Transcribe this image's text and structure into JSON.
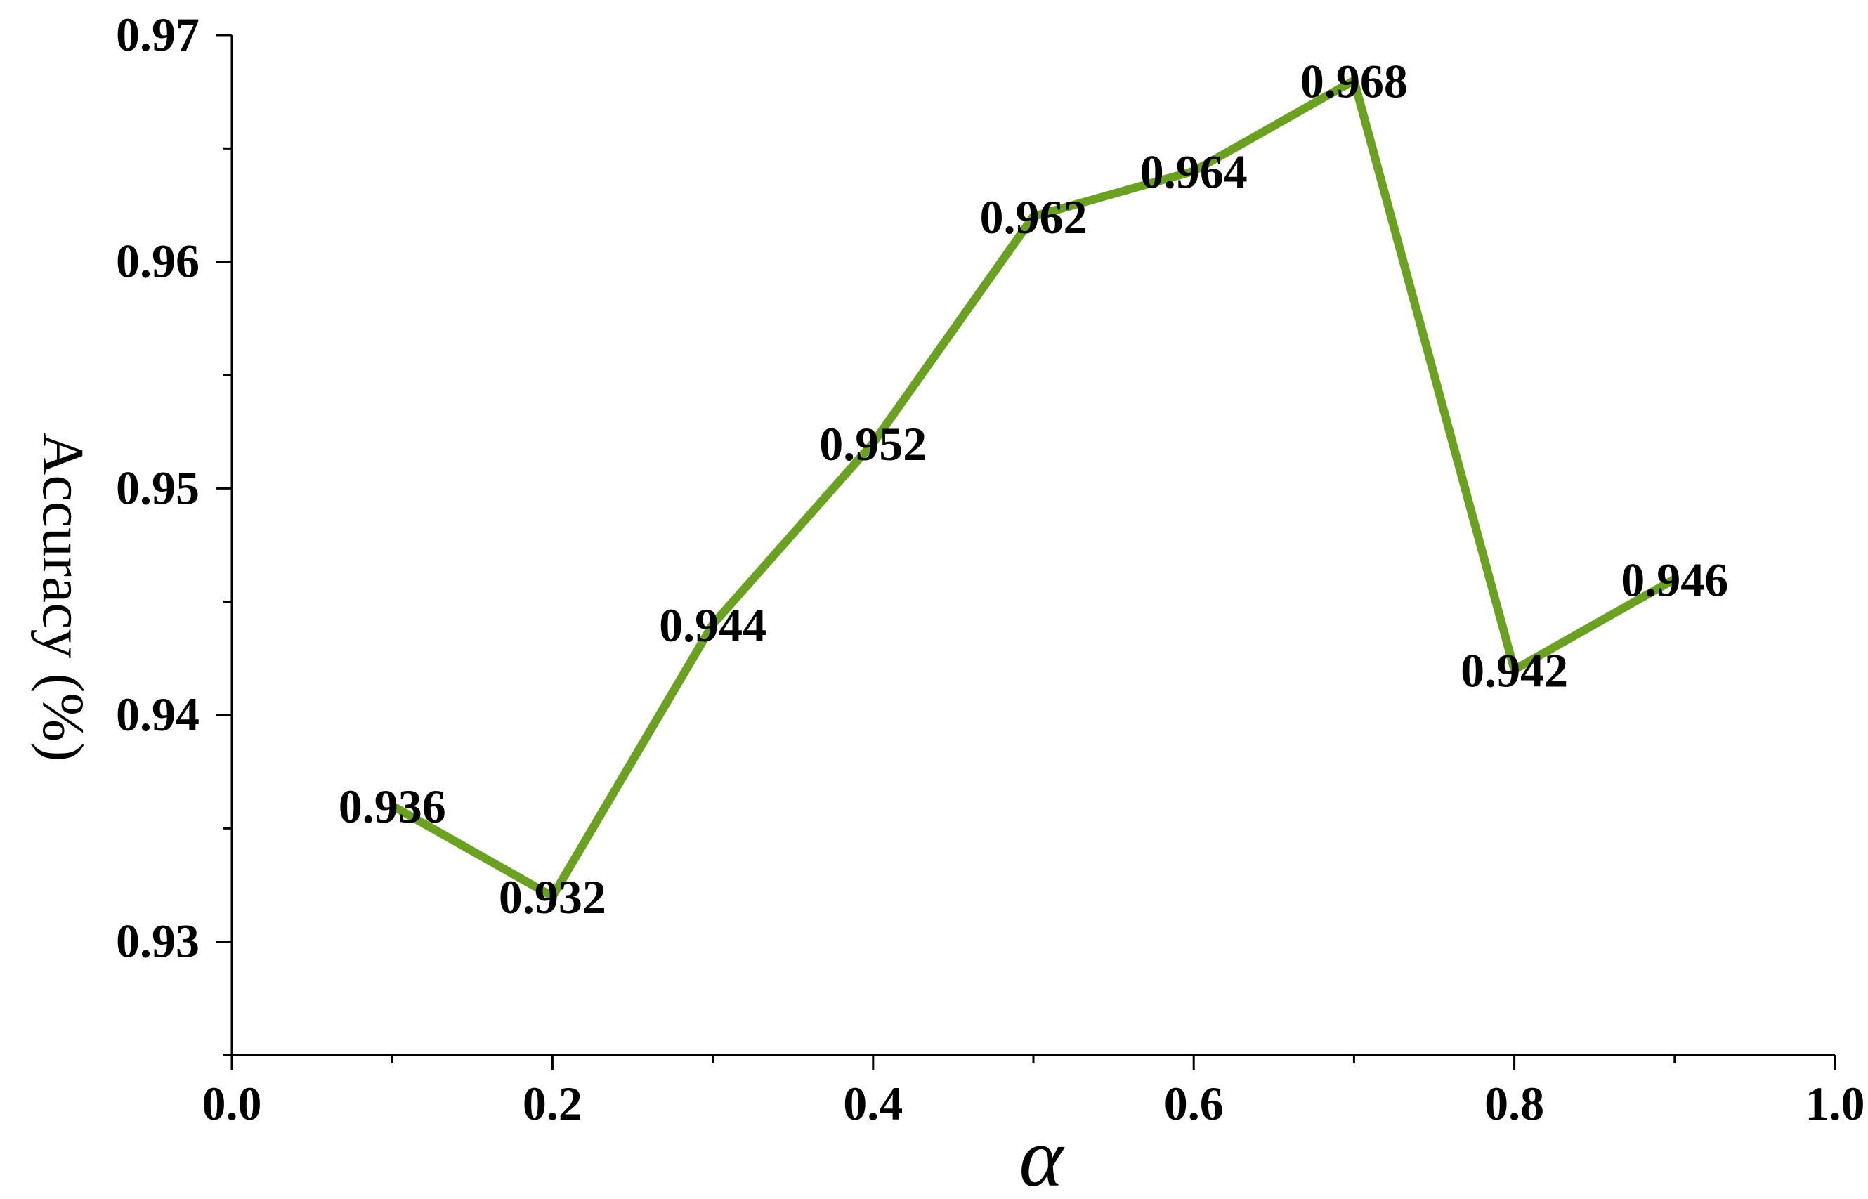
{
  "chart_data": {
    "type": "line",
    "xlabel": "α",
    "ylabel": "Accuracy (%)",
    "xlim": [
      0.0,
      1.0
    ],
    "ylim": [
      0.925,
      0.97
    ],
    "x_ticks": [
      "0.0",
      "0.2",
      "0.4",
      "0.6",
      "0.8",
      "1.0"
    ],
    "x_tick_values": [
      0.0,
      0.2,
      0.4,
      0.6,
      0.8,
      1.0
    ],
    "y_ticks": [
      "0.93",
      "0.94",
      "0.95",
      "0.96",
      "0.97"
    ],
    "y_tick_values": [
      0.93,
      0.94,
      0.95,
      0.96,
      0.97
    ],
    "grid": false,
    "line_color": "#6aa121",
    "series": [
      {
        "x": [
          0.1,
          0.2,
          0.3,
          0.4,
          0.5,
          0.6,
          0.7,
          0.8,
          0.9
        ],
        "values": [
          0.936,
          0.932,
          0.944,
          0.952,
          0.962,
          0.964,
          0.968,
          0.942,
          0.946
        ],
        "labels": [
          "0.936",
          "0.932",
          "0.944",
          "0.952",
          "0.962",
          "0.964",
          "0.968",
          "0.942",
          "0.946"
        ]
      }
    ]
  }
}
